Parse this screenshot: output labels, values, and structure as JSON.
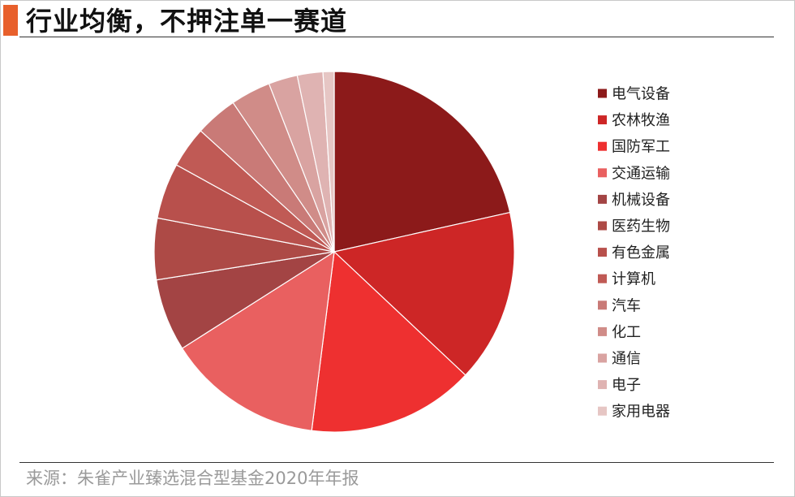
{
  "header": {
    "title": "行业均衡，不押注单一赛道"
  },
  "footer": {
    "source": "来源：朱雀产业臻选混合型基金2020年年报"
  },
  "chart_data": {
    "type": "pie",
    "title": "",
    "legend_position": "right",
    "start_angle": "12 o'clock, clockwise",
    "slices": [
      {
        "label": "电气设备",
        "value": 21.5,
        "color": "#8c1a1a"
      },
      {
        "label": "农林牧渔",
        "value": 15.5,
        "color": "#cd2626"
      },
      {
        "label": "国防军工",
        "value": 15.0,
        "color": "#ee3030"
      },
      {
        "label": "交通运输",
        "value": 14.0,
        "color": "#e96060"
      },
      {
        "label": "机械设备",
        "value": 6.5,
        "color": "#a34444"
      },
      {
        "label": "医药生物",
        "value": 5.5,
        "color": "#ad4a46"
      },
      {
        "label": "有色金属",
        "value": 5.0,
        "color": "#b8504c"
      },
      {
        "label": "计算机",
        "value": 3.7,
        "color": "#c05a55"
      },
      {
        "label": "汽车",
        "value": 3.8,
        "color": "#c97a77"
      },
      {
        "label": "化工",
        "value": 3.6,
        "color": "#d08c88"
      },
      {
        "label": "通信",
        "value": 2.6,
        "color": "#d9a3a1"
      },
      {
        "label": "电子",
        "value": 2.3,
        "color": "#dfb3b2"
      },
      {
        "label": "家用电器",
        "value": 1.0,
        "color": "#e6c6c4"
      }
    ]
  }
}
